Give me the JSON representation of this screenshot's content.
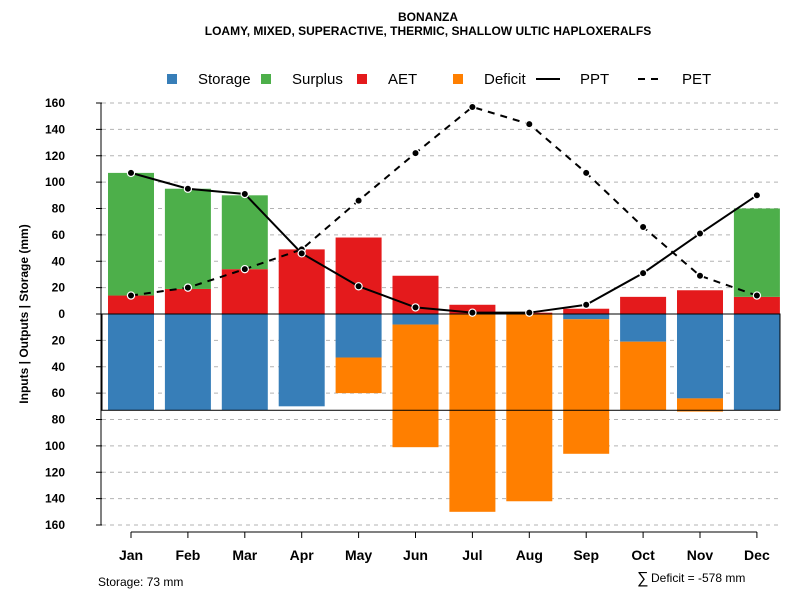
{
  "chart_data": {
    "type": "bar",
    "title": "BONANZA",
    "subtitle": "LOAMY, MIXED, SUPERACTIVE, THERMIC, SHALLOW ULTIC HAPLOXERALFS",
    "ylabel": "Inputs | Outputs | Storage    (mm)",
    "xlabel": "",
    "ylim": [
      -160,
      160
    ],
    "yticks": [
      160,
      140,
      120,
      100,
      80,
      60,
      40,
      20,
      0,
      20,
      40,
      60,
      80,
      100,
      120,
      140,
      160
    ],
    "grid": "horizontal dashed",
    "legend_position": "top",
    "categories": [
      "Jan",
      "Feb",
      "Mar",
      "Apr",
      "May",
      "Jun",
      "Jul",
      "Aug",
      "Sep",
      "Oct",
      "Nov",
      "Dec"
    ],
    "storage_capacity": 73,
    "legend": [
      {
        "key": "storage",
        "label": "Storage",
        "kind": "box",
        "color": "#377eb8"
      },
      {
        "key": "surplus",
        "label": "Surplus",
        "kind": "box",
        "color": "#4daf4a"
      },
      {
        "key": "aet",
        "label": "AET",
        "kind": "box",
        "color": "#e41a1c"
      },
      {
        "key": "deficit",
        "label": "Deficit",
        "kind": "box",
        "color": "#ff7f00"
      },
      {
        "key": "ppt",
        "label": "PPT",
        "kind": "solid"
      },
      {
        "key": "pet",
        "label": "PET",
        "kind": "dashed"
      }
    ],
    "series": [
      {
        "name": "AET",
        "key": "aet",
        "color": "#e41a1c",
        "values": [
          14,
          19,
          34,
          49,
          58,
          29,
          7,
          1,
          4,
          13,
          18,
          13
        ]
      },
      {
        "name": "Surplus",
        "key": "surplus",
        "color": "#4daf4a",
        "values": [
          93,
          76,
          56,
          0,
          0,
          0,
          0,
          0,
          0,
          0,
          0,
          67
        ]
      },
      {
        "name": "Storage",
        "key": "storage",
        "color": "#377eb8",
        "values": [
          73,
          73,
          73,
          70,
          33,
          8,
          0,
          0,
          4,
          21,
          64,
          73
        ]
      },
      {
        "name": "Deficit",
        "key": "deficit",
        "color": "#ff7f00",
        "values": [
          0,
          0,
          0,
          0,
          27,
          93,
          150,
          142,
          102,
          52,
          10,
          0
        ]
      },
      {
        "name": "PPT",
        "key": "ppt",
        "color": "#000000",
        "values": [
          107,
          95,
          91,
          46,
          21,
          5,
          1,
          1,
          7,
          31,
          61,
          90
        ]
      },
      {
        "name": "PET",
        "key": "pet",
        "color": "#000000",
        "values": [
          14,
          20,
          34,
          49,
          86,
          122,
          157,
          144,
          107,
          66,
          29,
          14
        ]
      }
    ]
  },
  "footer": {
    "storage_text": "Storage: 73 mm",
    "deficit_symbol": "∑",
    "deficit_text": "Deficit = -578 mm"
  }
}
